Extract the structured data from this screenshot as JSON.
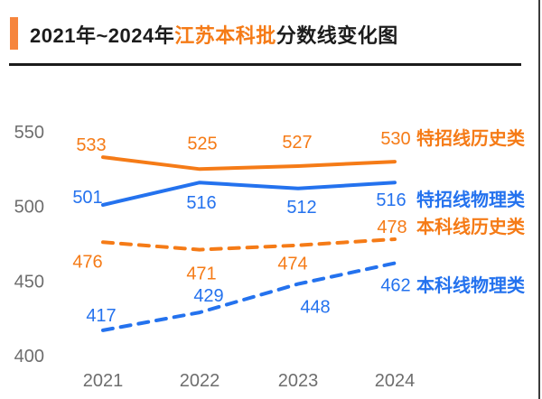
{
  "header": {
    "title_prefix": "2021年~2024年",
    "title_highlight": "江苏本科批",
    "title_suffix": "分数线变化图"
  },
  "colors": {
    "orange": "#f57b17",
    "blue": "#2472ee",
    "accent_bar": "#f6853d",
    "title_text": "#1c1c1c",
    "axis_text": "#6e6e6e",
    "divider": "#1b1b1b"
  },
  "chart_data": {
    "type": "line",
    "title": "2021年~2024年江苏本科批分数线变化图",
    "categories": [
      "2021",
      "2022",
      "2023",
      "2024"
    ],
    "series": [
      {
        "name": "特招线历史类",
        "values": [
          533,
          525,
          527,
          530
        ],
        "color": "#f57b17",
        "style": "solid"
      },
      {
        "name": "特招线物理类",
        "values": [
          501,
          516,
          512,
          516
        ],
        "color": "#2472ee",
        "style": "solid"
      },
      {
        "name": "本科线历史类",
        "values": [
          476,
          471,
          474,
          478
        ],
        "color": "#f57b17",
        "style": "dashed"
      },
      {
        "name": "本科线物理类",
        "values": [
          417,
          429,
          448,
          462
        ],
        "color": "#2472ee",
        "style": "dashed"
      }
    ],
    "yticks": [
      400,
      450,
      500,
      550
    ],
    "ylim": [
      400,
      560
    ],
    "xlabel": "",
    "ylabel": "",
    "grid": false,
    "legend_position": "right"
  }
}
